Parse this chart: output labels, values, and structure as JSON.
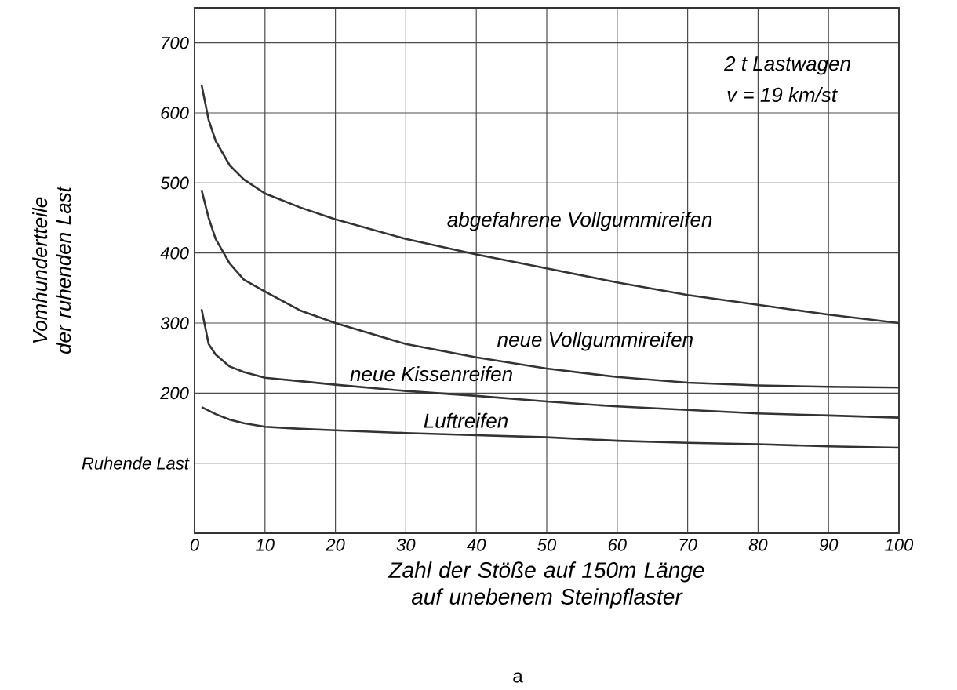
{
  "chart_data": {
    "type": "line",
    "xlabel": "Zahl der Stöße auf 150m Länge auf unebenem Steinpflaster",
    "ylabel": "Vomhundertteile der ruhenden Last",
    "x": [
      1,
      2,
      3,
      5,
      7,
      10,
      15,
      20,
      30,
      40,
      50,
      60,
      70,
      80,
      90,
      100
    ],
    "series": [
      {
        "name": "abgefahrene Vollgummireifen",
        "color": "#333333",
        "values": [
          640,
          590,
          560,
          525,
          505,
          485,
          465,
          448,
          420,
          398,
          378,
          358,
          340,
          326,
          312,
          300
        ]
      },
      {
        "name": "neue Vollgummireifen",
        "color": "#333333",
        "values": [
          490,
          450,
          420,
          385,
          362,
          345,
          318,
          300,
          270,
          251,
          235,
          223,
          215,
          211,
          209,
          208
        ]
      },
      {
        "name": "neue Kissenreifen",
        "color": "#333333",
        "values": [
          320,
          270,
          255,
          238,
          230,
          222,
          217,
          212,
          203,
          196,
          188,
          181,
          176,
          171,
          168,
          165
        ]
      },
      {
        "name": "Luftreifen",
        "color": "#333333",
        "values": [
          180,
          175,
          170,
          162,
          157,
          152,
          149,
          147,
          143,
          140,
          137,
          132,
          129,
          127,
          124,
          122
        ]
      }
    ],
    "annotations": [
      "2 t  Lastwagen",
      "v = 19 km/st",
      "a"
    ],
    "xlim": [
      0,
      100
    ],
    "ylim": [
      0,
      750
    ],
    "xticks": [
      0,
      10,
      20,
      30,
      40,
      50,
      60,
      70,
      80,
      90,
      100
    ],
    "yticks": [
      {
        "value": 100,
        "label": "Ruhende Last"
      },
      200,
      300,
      400,
      500,
      600,
      700
    ],
    "grid": true,
    "marker": "none",
    "line_style": "solid"
  }
}
